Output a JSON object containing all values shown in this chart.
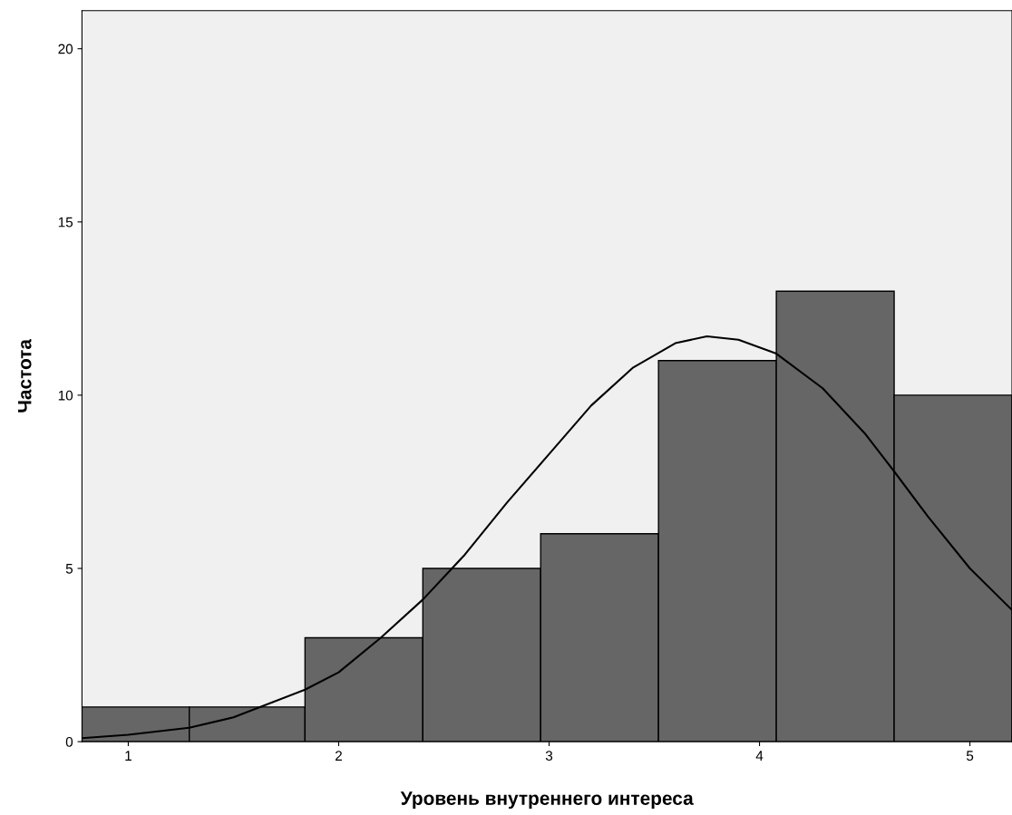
{
  "chart_data": {
    "type": "histogram",
    "xlabel": "Уровень внутреннего интереса",
    "ylabel": "Частота",
    "bins": [
      0.78,
      1.29,
      1.84,
      2.4,
      2.96,
      3.52,
      4.08,
      4.64,
      5.2
    ],
    "values": [
      1,
      1,
      3,
      5,
      6,
      11,
      13,
      10
    ],
    "color": "#666666",
    "series": [
      {
        "type": "line",
        "color": "#000000",
        "x": [
          0.78,
          1.0,
          1.29,
          1.5,
          1.84,
          2.0,
          2.2,
          2.4,
          2.6,
          2.8,
          3.0,
          3.2,
          3.4,
          3.6,
          3.75,
          3.9,
          4.08,
          4.3,
          4.5,
          4.64,
          4.8,
          5.0,
          5.2
        ],
        "values": [
          0.1,
          0.2,
          0.4,
          0.7,
          1.5,
          2.0,
          3.0,
          4.1,
          5.4,
          6.9,
          8.3,
          9.7,
          10.8,
          11.5,
          11.7,
          11.6,
          11.2,
          10.2,
          8.9,
          7.8,
          6.5,
          5.0,
          3.8
        ]
      }
    ],
    "xlim": [
      0.78,
      5.2
    ],
    "ylim": [
      0,
      21.1
    ],
    "xticks": [
      1,
      2,
      3,
      4,
      5
    ],
    "yticks": [
      0,
      5,
      10,
      15,
      20
    ],
    "grid": false,
    "legend": false
  }
}
